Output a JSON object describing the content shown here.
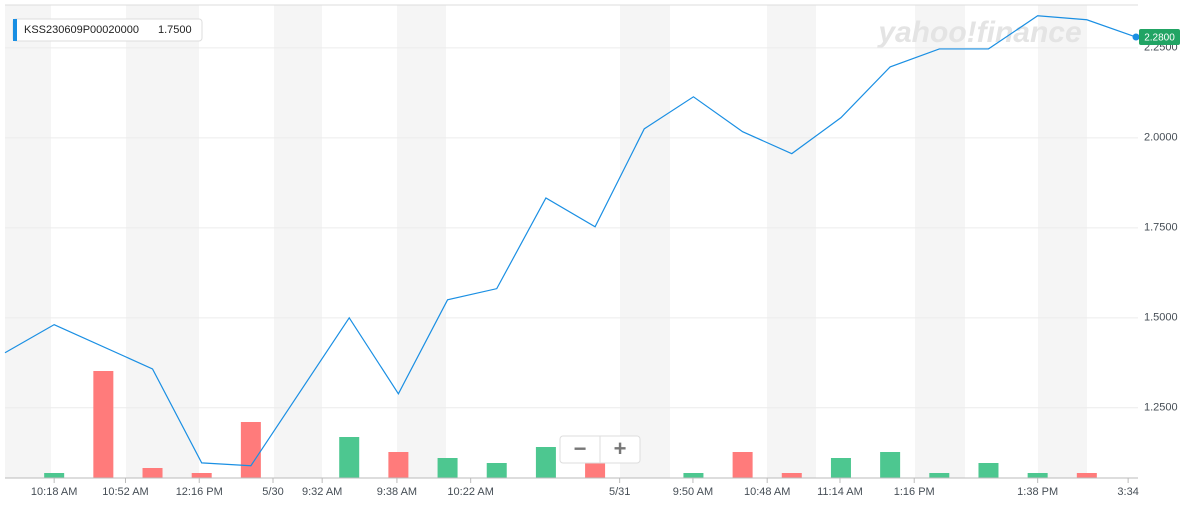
{
  "chart_data": {
    "type": "line",
    "watermark": "yahoo!finance",
    "legend_value": "1.7500",
    "last_price": {
      "value": 2.28,
      "label": "2.2800"
    },
    "last_price_color": "#21a464",
    "zoom_controls": [
      "−",
      "+"
    ],
    "x": [
      0,
      1,
      3,
      4,
      5,
      7,
      8,
      9,
      10,
      11,
      12,
      13,
      14,
      15,
      16,
      17,
      18,
      19,
      20,
      21,
      22,
      23
    ],
    "series": [
      {
        "name": "KSS230609P00020000",
        "color": "#1a8fe3",
        "values": [
          1.403,
          1.481,
          1.358,
          1.097,
          1.089,
          1.5,
          1.289,
          1.55,
          1.581,
          1.833,
          1.753,
          2.025,
          2.114,
          2.017,
          1.956,
          2.056,
          2.197,
          2.247,
          2.247,
          2.339,
          2.328,
          2.28
        ]
      }
    ],
    "volume": {
      "x": [
        1,
        2,
        3,
        4,
        5,
        7,
        8,
        9,
        10,
        11,
        12,
        14,
        15,
        16,
        17,
        18,
        19,
        20,
        21,
        22
      ],
      "values": [
        5,
        107,
        10,
        5,
        56,
        41,
        26,
        20,
        15,
        31,
        15,
        5,
        26,
        5,
        20,
        26,
        5,
        15,
        5,
        5
      ],
      "colors": [
        "#4dc790",
        "#ff7b7b",
        "#ff7b7b",
        "#ff7b7b",
        "#ff7b7b",
        "#4dc790",
        "#ff7b7b",
        "#4dc790",
        "#4dc790",
        "#4dc790",
        "#ff7b7b",
        "#4dc790",
        "#ff7b7b",
        "#ff7b7b",
        "#4dc790",
        "#4dc790",
        "#4dc790",
        "#4dc790",
        "#4dc790",
        "#ff7b7b"
      ],
      "ylim": [
        0,
        473
      ]
    },
    "xlim": [
      0,
      23
    ],
    "xticks": [
      {
        "value": 1,
        "label": "10:18 AM"
      },
      {
        "value": 2.45,
        "label": "10:52 AM"
      },
      {
        "value": 3.95,
        "label": "12:16 PM"
      },
      {
        "value": 5.45,
        "label": "5/30"
      },
      {
        "value": 6.45,
        "label": "9:32 AM"
      },
      {
        "value": 7.97,
        "label": "9:38 AM"
      },
      {
        "value": 9.47,
        "label": "10:22 AM"
      },
      {
        "value": 12.5,
        "label": "5/31"
      },
      {
        "value": 13.99,
        "label": "9:50 AM"
      },
      {
        "value": 15.5,
        "label": "10:48 AM"
      },
      {
        "value": 16.98,
        "label": "11:14 AM"
      },
      {
        "value": 18.49,
        "label": "1:16 PM"
      },
      {
        "value": 21,
        "label": "1:38 PM"
      },
      {
        "value": 22.84,
        "label": "3:34"
      }
    ],
    "ylim": [
      1.055,
      2.369
    ],
    "yticks": [
      {
        "value": 1.25,
        "label": "1.2500"
      },
      {
        "value": 1.5,
        "label": "1.5000"
      },
      {
        "value": 1.75,
        "label": "1.7500"
      },
      {
        "value": 2.0,
        "label": "2.0000"
      },
      {
        "value": 2.25,
        "label": "2.2500"
      }
    ],
    "grid": true
  }
}
